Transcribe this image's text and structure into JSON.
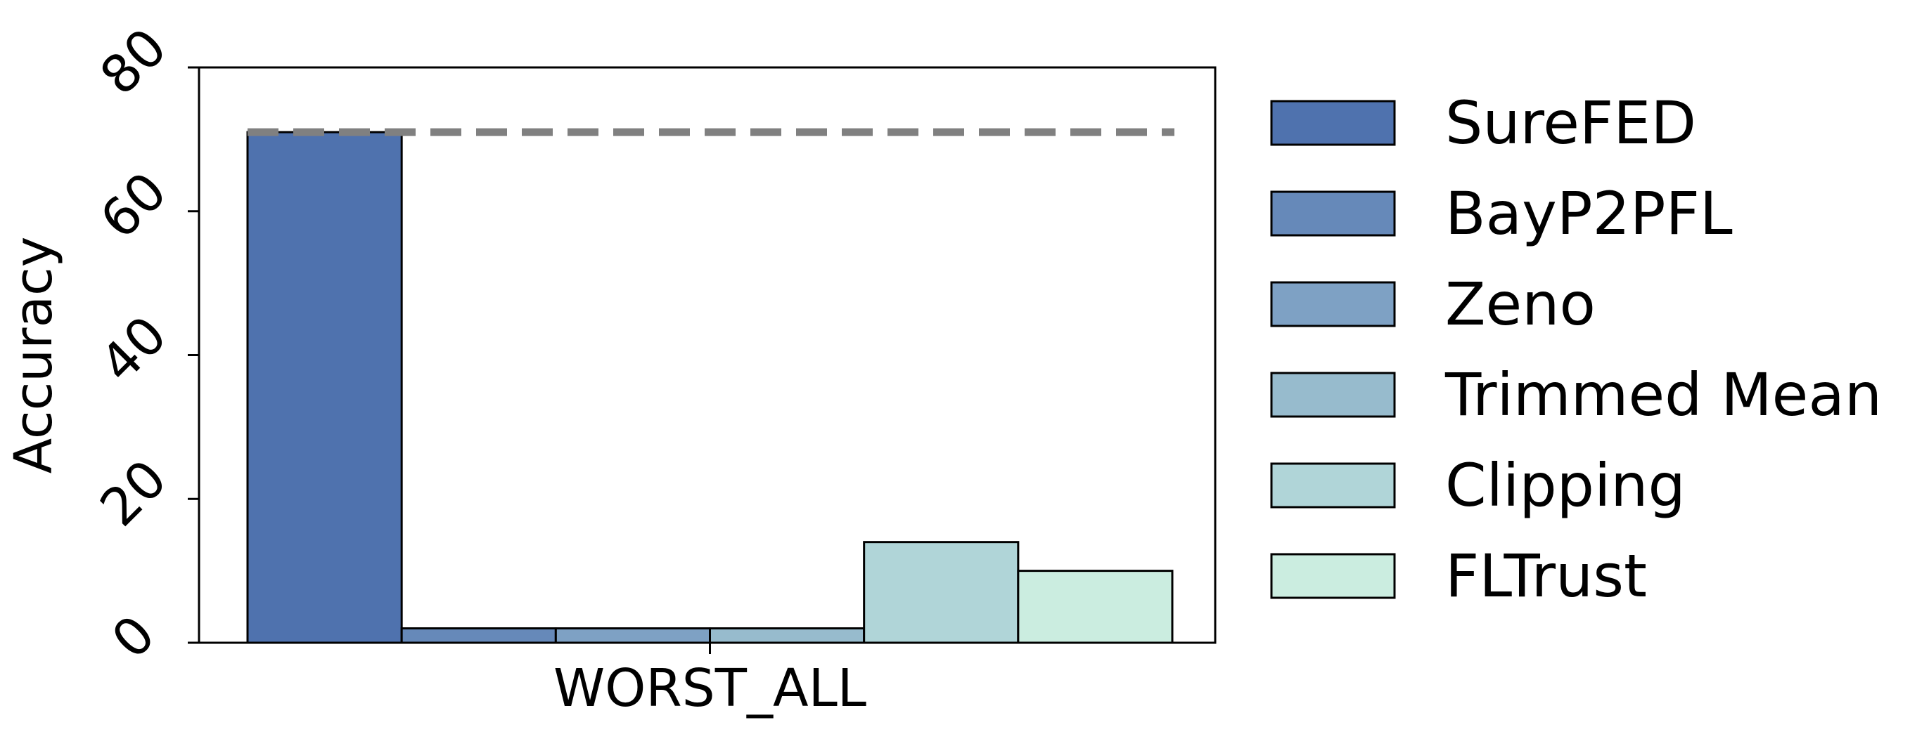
{
  "chart_data": {
    "type": "bar",
    "categories": [
      "WORST_ALL"
    ],
    "series": [
      {
        "name": "SureFED",
        "values": [
          71.0
        ]
      },
      {
        "name": "BayP2PFL",
        "values": [
          2.0
        ]
      },
      {
        "name": "Zeno",
        "values": [
          2.0
        ]
      },
      {
        "name": "Trimmed Mean",
        "values": [
          2.0
        ]
      },
      {
        "name": "Clipping",
        "values": [
          14.0
        ]
      },
      {
        "name": "FLTrust",
        "values": [
          10.0
        ]
      }
    ],
    "colors": [
      "#4f72ae",
      "#6689b9",
      "#7ea1c4",
      "#97bbcd",
      "#b0d5d8",
      "#cbede0"
    ],
    "reference_line": {
      "value": 71.0,
      "style": "dashed",
      "color": "#808080"
    },
    "ylabel": "Accuracy",
    "xlabel": "",
    "ylim": [
      0,
      80
    ],
    "yticks": [
      0,
      20,
      40,
      60,
      80
    ],
    "ytick_labels": [
      "0",
      "20",
      "40",
      "60",
      "80"
    ],
    "grid": false,
    "legend_position": "right"
  }
}
